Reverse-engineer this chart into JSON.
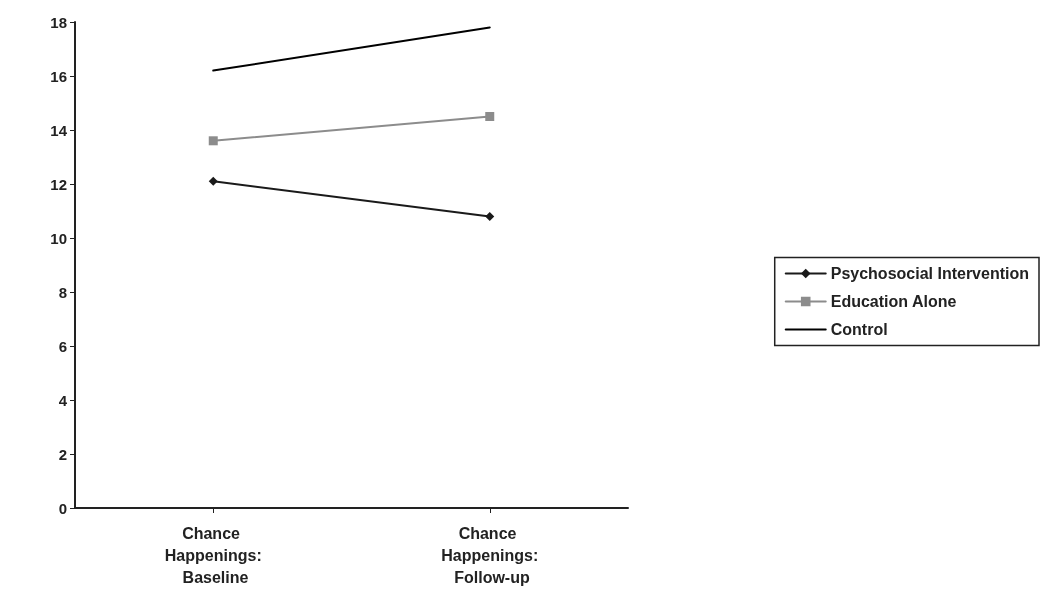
{
  "chart_data": {
    "type": "line",
    "categories": [
      "Chance Happenings: Baseline",
      "Chance Happenings: Follow-up"
    ],
    "series": [
      {
        "name": "Psychosocial Intervention",
        "color": "#1a1a1a",
        "marker": "diamond",
        "values": [
          12.1,
          10.8
        ]
      },
      {
        "name": "Education Alone",
        "color": "#8c8c8c",
        "marker": "square",
        "values": [
          13.6,
          14.5
        ]
      },
      {
        "name": "Control",
        "color": "#000000",
        "marker": "none",
        "values": [
          16.2,
          17.8
        ]
      }
    ],
    "ylim": [
      0,
      18
    ],
    "yticks": [
      0,
      2,
      4,
      6,
      8,
      10,
      12,
      14,
      16,
      18
    ],
    "grid": false,
    "legend": "right",
    "line_style": "solid"
  }
}
